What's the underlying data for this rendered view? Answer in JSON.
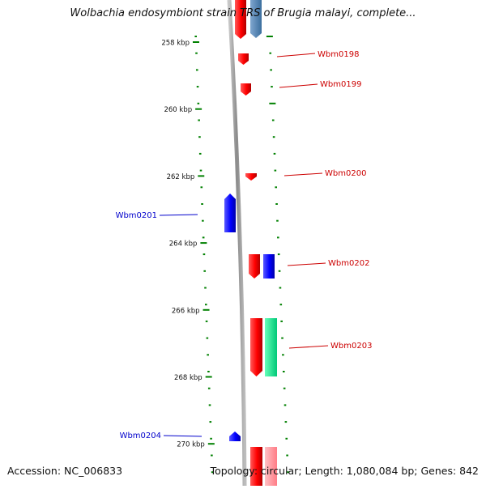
{
  "title": "Wolbachia endosymbiont strain TRS of Brugia malayi, complete...",
  "accession_text": "Accession: NC_006833",
  "summary_text": "Topology: circular; Length: 1,080,084 bp; Genes: 842",
  "colors": {
    "forward_gene": "#ff0000",
    "reverse_gene": "#0000ff",
    "tick_mark": "#008000",
    "forward_label": "#cc0000",
    "reverse_label": "#0000cc",
    "backbone": "#8a8a8a",
    "steelblue_feature": "#4f81b4",
    "green_feature": "#00e68c",
    "pink_feature": "#ff9aa2"
  },
  "axis": {
    "unit": "kbp",
    "ticks": [
      {
        "label": "258 kbp",
        "kbp": 258
      },
      {
        "label": "260 kbp",
        "kbp": 260
      },
      {
        "label": "262 kbp",
        "kbp": 262
      },
      {
        "label": "264 kbp",
        "kbp": 264
      },
      {
        "label": "266 kbp",
        "kbp": 266
      },
      {
        "label": "268 kbp",
        "kbp": 268
      },
      {
        "label": "270 kbp",
        "kbp": 270
      }
    ]
  },
  "genes": [
    {
      "label": "Wbm0198",
      "strand": "forward"
    },
    {
      "label": "Wbm0199",
      "strand": "forward"
    },
    {
      "label": "Wbm0200",
      "strand": "forward"
    },
    {
      "label": "Wbm0201",
      "strand": "reverse"
    },
    {
      "label": "Wbm0202",
      "strand": "forward"
    },
    {
      "label": "Wbm0203",
      "strand": "forward"
    },
    {
      "label": "Wbm0204",
      "strand": "reverse"
    }
  ]
}
